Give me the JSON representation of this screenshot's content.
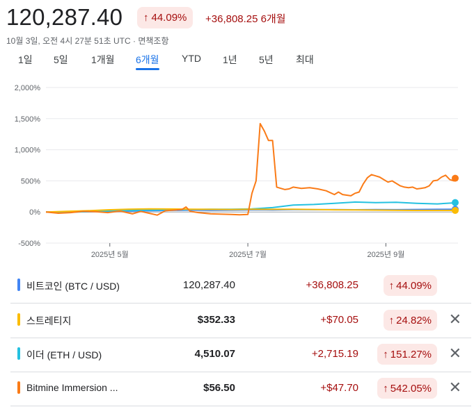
{
  "header": {
    "price": "120,287.40",
    "change_pct": "44.09%",
    "change_abs": "+36,808.25 6개월",
    "subline": "10월 3일, 오전 4시 27분 51초 UTC · 면책조항"
  },
  "tabs": [
    "1일",
    "5일",
    "1개월",
    "6개월",
    "YTD",
    "1년",
    "5년",
    "최대"
  ],
  "active_tab": "6개월",
  "colors": {
    "positive_text": "#a50e0e",
    "positive_bg": "#fce8e6",
    "accent": "#1a73e8",
    "btc": "#4285f4",
    "mstr": "#fbbc04",
    "eth": "#24c1e0",
    "bmnr": "#fa7b17"
  },
  "icons": {
    "up_arrow": "arrow-up-icon",
    "close": "close-icon"
  },
  "chart_data": {
    "type": "line",
    "y_tick_labels": [
      "2,000%",
      "1,500%",
      "1,000%",
      "500%",
      "0%",
      "-500%"
    ],
    "x_tick_labels": [
      "2025년 5월",
      "2025년 7월",
      "2025년 9월"
    ],
    "ylim": [
      -500,
      2000
    ],
    "grid": true,
    "series": [
      {
        "name": "비트코인 (BTC / USD)",
        "color": "#4285f4",
        "points": [
          [
            0,
            0
          ],
          [
            0.05,
            -2
          ],
          [
            0.1,
            3
          ],
          [
            0.15,
            10
          ],
          [
            0.2,
            15
          ],
          [
            0.25,
            20
          ],
          [
            0.3,
            25
          ],
          [
            0.35,
            30
          ],
          [
            0.4,
            28
          ],
          [
            0.45,
            30
          ],
          [
            0.5,
            35
          ],
          [
            0.55,
            34
          ],
          [
            0.6,
            38
          ],
          [
            0.65,
            37
          ],
          [
            0.7,
            39
          ],
          [
            0.75,
            36
          ],
          [
            0.8,
            38
          ],
          [
            0.85,
            37
          ],
          [
            0.9,
            40
          ],
          [
            0.95,
            42
          ],
          [
            1,
            44
          ]
        ]
      },
      {
        "name": "스트레티지",
        "color": "#fbbc04",
        "points": [
          [
            0,
            0
          ],
          [
            0.05,
            10
          ],
          [
            0.1,
            20
          ],
          [
            0.15,
            35
          ],
          [
            0.2,
            45
          ],
          [
            0.25,
            50
          ],
          [
            0.3,
            48
          ],
          [
            0.35,
            45
          ],
          [
            0.4,
            42
          ],
          [
            0.45,
            40
          ],
          [
            0.5,
            45
          ],
          [
            0.55,
            42
          ],
          [
            0.6,
            45
          ],
          [
            0.65,
            40
          ],
          [
            0.7,
            35
          ],
          [
            0.75,
            32
          ],
          [
            0.8,
            30
          ],
          [
            0.85,
            28
          ],
          [
            0.9,
            25
          ],
          [
            0.95,
            24
          ],
          [
            1,
            25
          ]
        ]
      },
      {
        "name": "이더 (ETH / USD)",
        "color": "#24c1e0",
        "points": [
          [
            0,
            0
          ],
          [
            0.05,
            -5
          ],
          [
            0.1,
            5
          ],
          [
            0.15,
            15
          ],
          [
            0.2,
            25
          ],
          [
            0.25,
            30
          ],
          [
            0.3,
            35
          ],
          [
            0.35,
            40
          ],
          [
            0.4,
            45
          ],
          [
            0.45,
            45
          ],
          [
            0.5,
            50
          ],
          [
            0.55,
            70
          ],
          [
            0.6,
            110
          ],
          [
            0.65,
            120
          ],
          [
            0.7,
            140
          ],
          [
            0.75,
            160
          ],
          [
            0.8,
            150
          ],
          [
            0.85,
            155
          ],
          [
            0.9,
            140
          ],
          [
            0.95,
            130
          ],
          [
            1,
            151
          ]
        ]
      },
      {
        "name": "Bitmine Immersion ...",
        "color": "#fa7b17",
        "points": [
          [
            0,
            0
          ],
          [
            0.03,
            -20
          ],
          [
            0.06,
            -10
          ],
          [
            0.09,
            10
          ],
          [
            0.12,
            5
          ],
          [
            0.15,
            -10
          ],
          [
            0.18,
            15
          ],
          [
            0.21,
            -30
          ],
          [
            0.23,
            10
          ],
          [
            0.25,
            -20
          ],
          [
            0.27,
            -50
          ],
          [
            0.29,
            20
          ],
          [
            0.31,
            30
          ],
          [
            0.33,
            40
          ],
          [
            0.34,
            80
          ],
          [
            0.35,
            10
          ],
          [
            0.37,
            -10
          ],
          [
            0.4,
            -30
          ],
          [
            0.45,
            -40
          ],
          [
            0.47,
            -45
          ],
          [
            0.49,
            -40
          ],
          [
            0.5,
            300
          ],
          [
            0.51,
            500
          ],
          [
            0.52,
            1420
          ],
          [
            0.53,
            1300
          ],
          [
            0.54,
            1150
          ],
          [
            0.55,
            1150
          ],
          [
            0.56,
            400
          ],
          [
            0.57,
            380
          ],
          [
            0.58,
            360
          ],
          [
            0.59,
            370
          ],
          [
            0.6,
            400
          ],
          [
            0.62,
            380
          ],
          [
            0.64,
            390
          ],
          [
            0.66,
            370
          ],
          [
            0.68,
            340
          ],
          [
            0.7,
            280
          ],
          [
            0.71,
            320
          ],
          [
            0.72,
            280
          ],
          [
            0.74,
            260
          ],
          [
            0.75,
            300
          ],
          [
            0.76,
            320
          ],
          [
            0.77,
            450
          ],
          [
            0.78,
            550
          ],
          [
            0.79,
            600
          ],
          [
            0.8,
            580
          ],
          [
            0.81,
            560
          ],
          [
            0.82,
            520
          ],
          [
            0.83,
            480
          ],
          [
            0.84,
            500
          ],
          [
            0.85,
            460
          ],
          [
            0.86,
            420
          ],
          [
            0.87,
            400
          ],
          [
            0.88,
            390
          ],
          [
            0.89,
            400
          ],
          [
            0.9,
            370
          ],
          [
            0.91,
            380
          ],
          [
            0.92,
            390
          ],
          [
            0.93,
            420
          ],
          [
            0.94,
            500
          ],
          [
            0.95,
            510
          ],
          [
            0.96,
            560
          ],
          [
            0.97,
            590
          ],
          [
            0.98,
            520
          ],
          [
            0.99,
            500
          ],
          [
            1,
            542
          ]
        ]
      }
    ]
  },
  "rows": [
    {
      "name": "비트코인 (BTC / USD)",
      "value": "120,287.40",
      "diff": "+36,808.25",
      "pct": "44.09%",
      "color": "#4285f4",
      "closable": false,
      "bold_value": false
    },
    {
      "name": "스트레티지",
      "value": "$352.33",
      "diff": "+$70.05",
      "pct": "24.82%",
      "color": "#fbbc04",
      "closable": true,
      "bold_value": true
    },
    {
      "name": "이더 (ETH / USD)",
      "value": "4,510.07",
      "diff": "+2,715.19",
      "pct": "151.27%",
      "color": "#24c1e0",
      "closable": true,
      "bold_value": true
    },
    {
      "name": "Bitmine Immersion ...",
      "value": "$56.50",
      "diff": "+$47.70",
      "pct": "542.05%",
      "color": "#fa7b17",
      "closable": true,
      "bold_value": true
    }
  ]
}
